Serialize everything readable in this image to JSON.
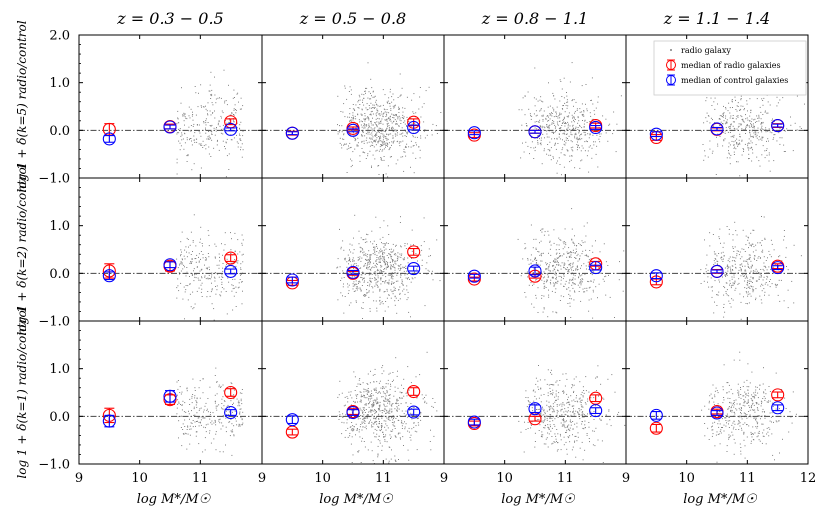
{
  "figure": {
    "colors": {
      "radio": "#ff0000",
      "control": "#0000ff",
      "scatter": "#808080",
      "axis": "#000000",
      "refline": "#444444"
    },
    "legend": {
      "placement": "top-right of last panel in first row",
      "entries": [
        "radio galaxy",
        "median of radio galaxies",
        "median of control galaxies"
      ]
    }
  },
  "chart_data": {
    "type": "scatter",
    "grid": false,
    "columns": [
      {
        "title": "z = 0.3 − 0.5",
        "xlabel": "log M*/M☉",
        "xticks": [
          "9",
          "10",
          "11"
        ],
        "xlim": [
          9,
          11.95
        ]
      },
      {
        "title": "z = 0.5 − 0.8",
        "xlabel": "log M*/M☉",
        "xticks": [
          "9",
          "10",
          "11"
        ],
        "xlim": [
          9,
          11.95
        ]
      },
      {
        "title": "z = 0.8 − 1.1",
        "xlabel": "log M*/M☉",
        "xticks": [
          "9",
          "10",
          "11"
        ],
        "xlim": [
          9,
          11.95
        ]
      },
      {
        "title": "z = 1.1 − 1.4",
        "xlabel": "log M*/M☉",
        "xticks": [
          "9",
          "10",
          "11",
          "12"
        ],
        "xlim": [
          9,
          12
        ]
      }
    ],
    "rows": [
      {
        "ylabel": "log 1 + δ(k=5) radio/control",
        "yticks": [
          "2.0",
          "1.0",
          "0.0",
          "−1.0"
        ],
        "ylim": [
          -1.0,
          2.0
        ],
        "scatter_density": [
          0.3,
          0.7,
          0.5,
          0.45
        ]
      },
      {
        "ylabel": "log 1 + δ(k=2) radio/control",
        "yticks": [
          "1.0",
          "0.0",
          "−1.0"
        ],
        "ylim": [
          -1.0,
          2.0
        ],
        "scatter_density": [
          0.3,
          0.7,
          0.5,
          0.45
        ]
      },
      {
        "ylabel": "log 1 + δ(k=1) radio/control",
        "yticks": [
          "1.0",
          "0.0",
          "−1.0"
        ],
        "ylim": [
          -1.0,
          2.0
        ],
        "scatter_density": [
          0.3,
          0.7,
          0.5,
          0.45
        ]
      }
    ],
    "reference_line_y": 0,
    "mass_bins": [
      9.5,
      10.5,
      11.5
    ],
    "panels": [
      {
        "row": 0,
        "col": 0,
        "radio": [
          0.02,
          0.08,
          0.18
        ],
        "radio_err": [
          0.12,
          0.05,
          0.06
        ],
        "control": [
          -0.18,
          0.07,
          0.02
        ],
        "control_err": [
          0.07,
          0.04,
          0.03
        ]
      },
      {
        "row": 0,
        "col": 1,
        "radio": [
          -0.06,
          0.04,
          0.17
        ],
        "radio_err": [
          0.04,
          0.03,
          0.07
        ],
        "control": [
          -0.06,
          0.0,
          0.06
        ],
        "control_err": [
          0.03,
          0.03,
          0.05
        ]
      },
      {
        "row": 0,
        "col": 2,
        "radio": [
          -0.1,
          -0.03,
          0.1
        ],
        "radio_err": [
          0.05,
          0.03,
          0.05
        ],
        "control": [
          -0.05,
          -0.03,
          0.06
        ],
        "control_err": [
          0.04,
          0.03,
          0.04
        ]
      },
      {
        "row": 0,
        "col": 3,
        "radio": [
          -0.15,
          0.02,
          0.1
        ],
        "radio_err": [
          0.06,
          0.03,
          0.04
        ],
        "control": [
          -0.08,
          0.03,
          0.1
        ],
        "control_err": [
          0.05,
          0.03,
          0.03
        ]
      },
      {
        "row": 1,
        "col": 0,
        "radio": [
          0.05,
          0.15,
          0.32
        ],
        "radio_err": [
          0.15,
          0.1,
          0.07
        ],
        "control": [
          -0.05,
          0.18,
          0.04
        ],
        "control_err": [
          0.08,
          0.06,
          0.05
        ]
      },
      {
        "row": 1,
        "col": 1,
        "radio": [
          -0.2,
          0.0,
          0.45
        ],
        "radio_err": [
          0.05,
          0.04,
          0.07
        ],
        "control": [
          -0.14,
          0.02,
          0.1
        ],
        "control_err": [
          0.06,
          0.04,
          0.05
        ]
      },
      {
        "row": 1,
        "col": 2,
        "radio": [
          -0.12,
          -0.06,
          0.2
        ],
        "radio_err": [
          0.04,
          0.04,
          0.05
        ],
        "control": [
          -0.06,
          0.05,
          0.12
        ],
        "control_err": [
          0.04,
          0.08,
          0.05
        ]
      },
      {
        "row": 1,
        "col": 3,
        "radio": [
          -0.18,
          0.04,
          0.15
        ],
        "radio_err": [
          0.06,
          0.04,
          0.05
        ],
        "control": [
          -0.05,
          0.04,
          0.12
        ],
        "control_err": [
          0.06,
          0.03,
          0.04
        ]
      },
      {
        "row": 2,
        "col": 0,
        "radio": [
          0.02,
          0.35,
          0.5
        ],
        "radio_err": [
          0.15,
          0.1,
          0.08
        ],
        "control": [
          -0.1,
          0.42,
          0.08
        ],
        "control_err": [
          0.12,
          0.12,
          0.06
        ]
      },
      {
        "row": 2,
        "col": 1,
        "radio": [
          -0.33,
          0.1,
          0.52
        ],
        "radio_err": [
          0.06,
          0.06,
          0.08
        ],
        "control": [
          -0.07,
          0.08,
          0.09
        ],
        "control_err": [
          0.08,
          0.06,
          0.06
        ]
      },
      {
        "row": 2,
        "col": 2,
        "radio": [
          -0.15,
          -0.05,
          0.38
        ],
        "radio_err": [
          0.05,
          0.05,
          0.07
        ],
        "control": [
          -0.12,
          0.16,
          0.12
        ],
        "control_err": [
          0.06,
          0.08,
          0.06
        ]
      },
      {
        "row": 2,
        "col": 3,
        "radio": [
          -0.25,
          0.1,
          0.45
        ],
        "radio_err": [
          0.08,
          0.05,
          0.06
        ],
        "control": [
          0.02,
          0.07,
          0.18
        ],
        "control_err": [
          0.08,
          0.05,
          0.06
        ]
      }
    ]
  }
}
